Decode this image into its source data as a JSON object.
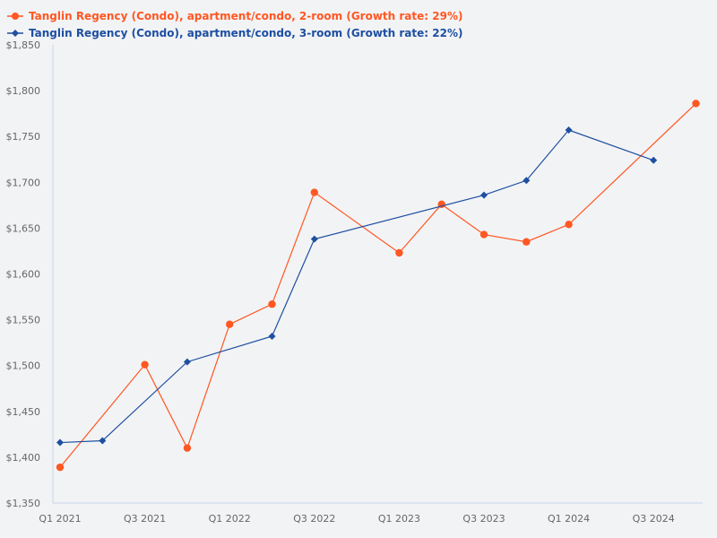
{
  "chart_data": {
    "type": "line",
    "title": "",
    "xlabel": "",
    "ylabel": "",
    "x": [
      "Q1 2021",
      "Q2 2021",
      "Q3 2021",
      "Q4 2021",
      "Q1 2022",
      "Q2 2022",
      "Q3 2022",
      "Q4 2022",
      "Q1 2023",
      "Q2 2023",
      "Q3 2023",
      "Q4 2023",
      "Q1 2024",
      "Q2 2024",
      "Q3 2024",
      "Q4 2024"
    ],
    "x_tick_labels": [
      "Q1 2021",
      "Q3 2021",
      "Q1 2022",
      "Q3 2022",
      "Q1 2023",
      "Q3 2023",
      "Q1 2024",
      "Q3 2024"
    ],
    "y_tick_labels": [
      "$1,850",
      "$1,800",
      "$1,750",
      "$1,700",
      "$1,650",
      "$1,600",
      "$1,550",
      "$1,500",
      "$1,450",
      "$1,400",
      "$1,350"
    ],
    "ylim": [
      1350,
      1850
    ],
    "grid": false,
    "legend_position": "top-left",
    "series": [
      {
        "name": "Tanglin Regency (Condo), apartment/condo, 2-room (Growth rate: 29%)",
        "color": "#ff5722",
        "marker": "circle",
        "values": [
          1389,
          null,
          1501,
          1410,
          1545,
          1567,
          1689,
          null,
          1623,
          1676,
          1643,
          1635,
          1654,
          null,
          null,
          1786
        ]
      },
      {
        "name": "Tanglin Regency (Condo), apartment/condo, 3-room (Growth rate: 22%)",
        "color": "#1e4fa0",
        "marker": "diamond",
        "values": [
          1416,
          1418,
          null,
          1504,
          null,
          1532,
          1638,
          null,
          null,
          null,
          1686,
          1702,
          1757,
          null,
          1724,
          null
        ]
      }
    ]
  },
  "legend": {
    "items": [
      {
        "label": "Tanglin Regency (Condo), apartment/condo, 2-room (Growth rate: 29%)",
        "color": "#ff5722"
      },
      {
        "label": "Tanglin Regency (Condo), apartment/condo, 3-room (Growth rate: 22%)",
        "color": "#1e4fa0"
      }
    ]
  },
  "colors": {
    "background": "#f2f3f5",
    "axis": "#c8d4e8",
    "tick_text": "#666666"
  }
}
